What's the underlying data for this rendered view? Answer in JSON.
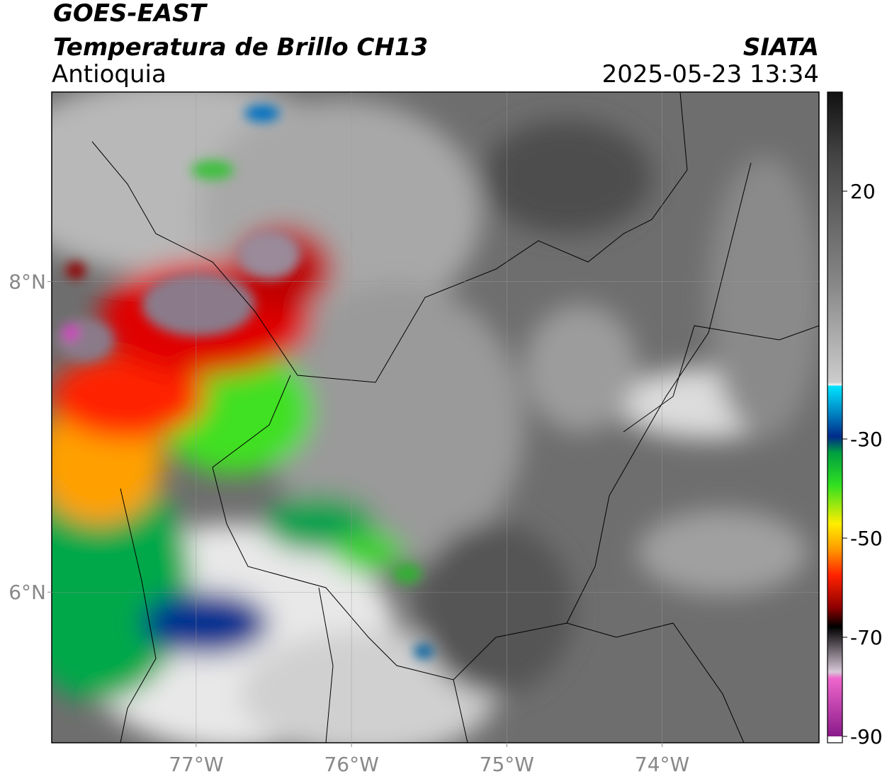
{
  "header": {
    "satellite": "GOES-EAST",
    "product": "Temperatura de Brillo CH13",
    "region": "Antioquia",
    "source": "SIATA",
    "datetime": "2025-05-23 13:34"
  },
  "map": {
    "xlim": [
      -77.93,
      -72.99
    ],
    "ylim": [
      5.03,
      9.22
    ],
    "xticks": [
      {
        "value": -77,
        "label": "77°W"
      },
      {
        "value": -76,
        "label": "76°W"
      },
      {
        "value": -75,
        "label": "75°W"
      },
      {
        "value": -74,
        "label": "74°W"
      }
    ],
    "yticks": [
      {
        "value": 8,
        "label": "8°N"
      },
      {
        "value": 6,
        "label": "6°N"
      }
    ],
    "grid": true
  },
  "colorbar": {
    "lim": [
      -90,
      40
    ],
    "ticks": [
      20,
      -30,
      -50,
      -70,
      -90
    ]
  }
}
